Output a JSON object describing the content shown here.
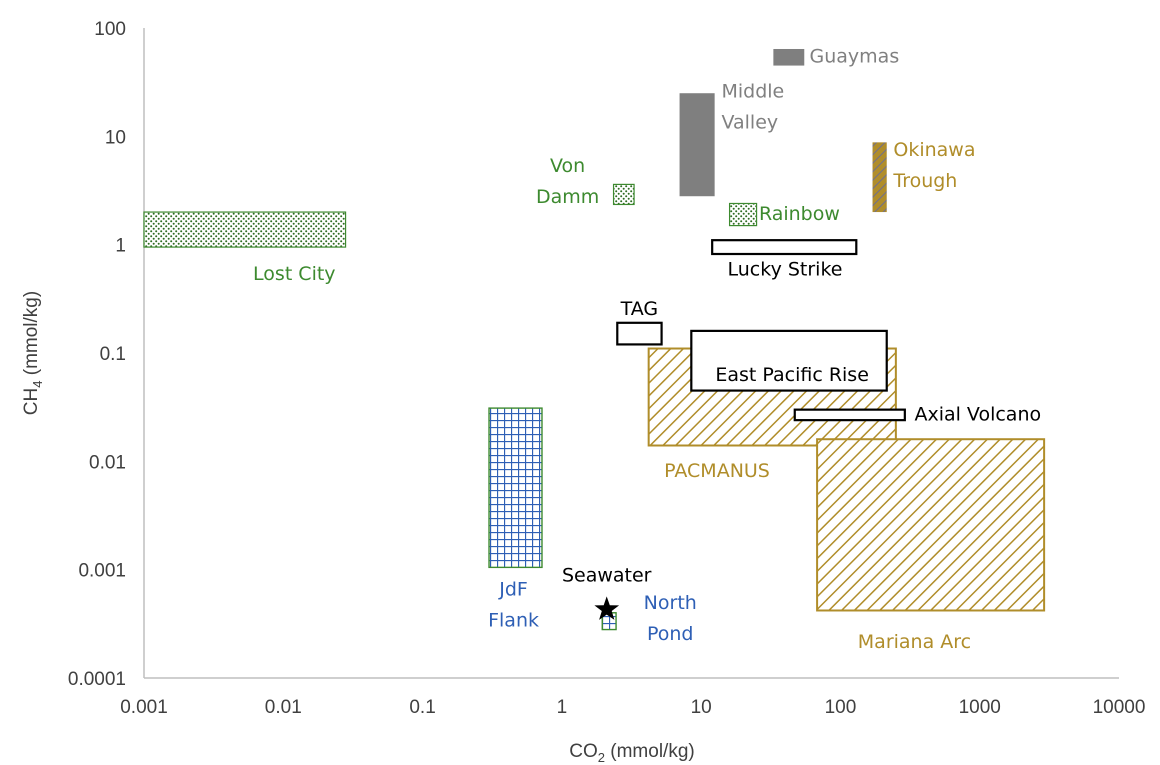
{
  "chart_data": {
    "type": "scatter",
    "title": "",
    "xlabel": {
      "text": "CO",
      "sub": "2",
      "rest": " (mmol/kg)"
    },
    "ylabel": {
      "text": "CH",
      "sub": "4",
      "rest": " (mmol/kg)"
    },
    "xscale": "log",
    "yscale": "log",
    "xlim": [
      0.001,
      10000
    ],
    "ylim": [
      0.0001,
      100
    ],
    "grid": false,
    "legend": "none",
    "x_ticks": [
      "0.001",
      "0.01",
      "0.1",
      "1",
      "10",
      "100",
      "1000",
      "10000"
    ],
    "y_ticks": [
      "0.0001",
      "0.001",
      "0.01",
      "0.1",
      "1",
      "10",
      "100"
    ],
    "colors": {
      "green": "#3d8a2f",
      "gray": "#808080",
      "gold": "#b08d2a",
      "blue": "#2e5fb5",
      "black": "#000000"
    },
    "regions": [
      {
        "name": "Lost City",
        "label_lines": [
          "Lost City"
        ],
        "co2": [
          0.001,
          0.028
        ],
        "ch4": [
          0.95,
          2.0
        ],
        "style": "dots-green",
        "label_color": "green",
        "label_at": [
          0.012,
          0.55
        ],
        "anchor": "middle"
      },
      {
        "name": "Von Damm",
        "label_lines": [
          "Von",
          "Damm"
        ],
        "co2": [
          2.35,
          3.3
        ],
        "ch4": [
          2.35,
          3.6
        ],
        "style": "dots-green",
        "label_color": "green",
        "label_at": [
          1.1,
          3.9
        ],
        "anchor": "middle"
      },
      {
        "name": "Rainbow",
        "label_lines": [
          "Rainbow"
        ],
        "co2": [
          16,
          25
        ],
        "ch4": [
          1.5,
          2.4
        ],
        "style": "dots-green",
        "label_color": "green",
        "label_at": [
          26,
          1.95
        ],
        "anchor": "start"
      },
      {
        "name": "Guaymas",
        "label_lines": [
          "Guaymas"
        ],
        "co2": [
          33,
          55
        ],
        "ch4": [
          45,
          64
        ],
        "style": "solid-gray",
        "label_color": "gray",
        "label_at": [
          60,
          56
        ],
        "anchor": "start"
      },
      {
        "name": "Middle Valley",
        "label_lines": [
          "Middle",
          "Valley"
        ],
        "co2": [
          7,
          12.5
        ],
        "ch4": [
          2.8,
          25
        ],
        "style": "solid-gray",
        "label_color": "gray",
        "label_at": [
          14,
          19
        ],
        "anchor": "start"
      },
      {
        "name": "Okinawa Trough",
        "label_lines": [
          "Okinawa",
          "Trough"
        ],
        "co2": [
          170,
          215
        ],
        "ch4": [
          2.0,
          8.8
        ],
        "style": "okinawa",
        "label_color": "gold",
        "label_at": [
          240,
          5.5
        ],
        "anchor": "start"
      },
      {
        "name": "Lucky Strike",
        "label_lines": [
          "Lucky Strike"
        ],
        "co2": [
          12,
          130
        ],
        "ch4": [
          0.82,
          1.1
        ],
        "style": "outline",
        "label_color": "black",
        "label_at": [
          40,
          0.6
        ],
        "anchor": "middle"
      },
      {
        "name": "TAG",
        "label_lines": [
          "TAG"
        ],
        "co2": [
          2.5,
          5.2
        ],
        "ch4": [
          0.12,
          0.19
        ],
        "style": "outline",
        "label_color": "black",
        "label_at": [
          3.6,
          0.26
        ],
        "anchor": "middle"
      },
      {
        "name": "PACMANUS",
        "label_lines": [
          "PACMANUS"
        ],
        "co2": [
          4.2,
          250
        ],
        "ch4": [
          0.014,
          0.11
        ],
        "style": "hatch-gold",
        "label_color": "gold",
        "label_at": [
          13,
          0.0083
        ],
        "anchor": "middle"
      },
      {
        "name": "East Pacific Rise",
        "label_lines": [
          "East Pacific Rise"
        ],
        "co2": [
          8.5,
          215
        ],
        "ch4": [
          0.045,
          0.16
        ],
        "style": "outline",
        "label_color": "black",
        "label_at": [
          45,
          0.064
        ],
        "anchor": "middle"
      },
      {
        "name": "Axial Volcano",
        "label_lines": [
          "Axial Volcano"
        ],
        "co2": [
          47,
          290
        ],
        "ch4": [
          0.024,
          0.03
        ],
        "style": "outline",
        "label_color": "black",
        "label_at": [
          340,
          0.0275
        ],
        "anchor": "start"
      },
      {
        "name": "Mariana Arc",
        "label_lines": [
          "Mariana Arc"
        ],
        "co2": [
          68,
          2900
        ],
        "ch4": [
          0.00042,
          0.016
        ],
        "style": "hatch-gold",
        "label_color": "gold",
        "label_at": [
          340,
          0.00022
        ],
        "anchor": "middle"
      },
      {
        "name": "JdF Flank",
        "label_lines": [
          "JdF",
          "Flank"
        ],
        "co2": [
          0.3,
          0.72
        ],
        "ch4": [
          0.00105,
          0.031
        ],
        "style": "grid-blue",
        "label_color": "blue",
        "label_at": [
          0.45,
          0.00048
        ],
        "anchor": "middle"
      },
      {
        "name": "North Pond",
        "label_lines": [
          "North",
          "Pond"
        ],
        "co2": [
          1.95,
          2.45
        ],
        "ch4": [
          0.00028,
          0.0004
        ],
        "style": "grid-blue",
        "label_color": "blue",
        "label_at": [
          6.0,
          0.00036
        ],
        "anchor": "middle"
      }
    ],
    "points": [
      {
        "name": "Seawater",
        "label": "Seawater",
        "co2": 2.1,
        "ch4": 0.00043,
        "marker": "star",
        "label_at": [
          2.1,
          0.0009
        ],
        "anchor": "middle"
      }
    ]
  }
}
